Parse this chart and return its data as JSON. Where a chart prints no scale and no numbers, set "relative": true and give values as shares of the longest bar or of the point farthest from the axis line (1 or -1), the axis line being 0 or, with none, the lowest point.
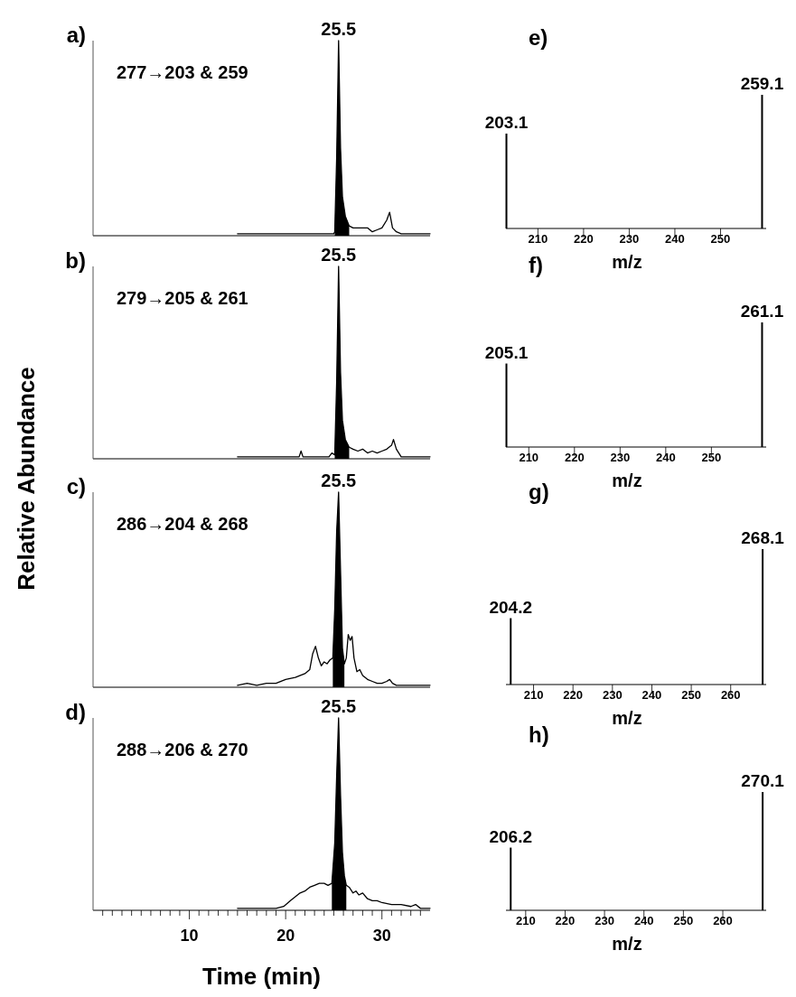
{
  "chart_data": [
    {
      "type": "line",
      "title": "a)",
      "ylabel": "Relative Abundance",
      "relative": true,
      "xlim": [
        0,
        35
      ],
      "tick_labels": false,
      "series": [
        {
          "type": "line",
          "color": "#000000",
          "x": [
            15,
            20,
            25,
            25.1,
            25.3,
            25.5,
            25.7,
            25.9,
            26.2,
            26.6,
            27,
            28.5,
            29,
            29.5,
            30,
            30.5,
            30.8,
            31.1,
            31.5,
            32,
            35
          ],
          "values": [
            0.01,
            0.01,
            0.01,
            0.02,
            0.4,
            1,
            0.45,
            0.2,
            0.1,
            0.05,
            0.04,
            0.04,
            0.02,
            0.03,
            0.04,
            0.08,
            0.12,
            0.04,
            0.02,
            0.01,
            0.01
          ]
        },
        {
          "type": "area",
          "color": "#000000",
          "x": [
            25.1,
            25.3,
            25.5,
            25.7,
            25.9,
            26.2,
            26.6
          ],
          "values": [
            0.02,
            0.4,
            1,
            0.45,
            0.2,
            0.1,
            0.05
          ]
        }
      ],
      "annotations": [
        "277→203 & 259",
        {
          "text": "25.5",
          "x": 25.5,
          "y": 1
        }
      ]
    },
    {
      "type": "line",
      "title": "b)",
      "relative": true,
      "xlim": [
        0,
        35
      ],
      "tick_labels": false,
      "series": [
        {
          "type": "line",
          "color": "#000000",
          "x": [
            15,
            21.4,
            21.6,
            21.8,
            24.5,
            24.8,
            25.1,
            25.3,
            25.5,
            25.7,
            25.9,
            26.2,
            26.6,
            27,
            27.5,
            28,
            28.5,
            29,
            29.5,
            30,
            30.5,
            31,
            31.2,
            31.5,
            32,
            35
          ],
          "values": [
            0.01,
            0.01,
            0.04,
            0.01,
            0.01,
            0.03,
            0.02,
            0.4,
            1,
            0.45,
            0.2,
            0.1,
            0.06,
            0.05,
            0.04,
            0.05,
            0.03,
            0.04,
            0.03,
            0.04,
            0.05,
            0.07,
            0.1,
            0.05,
            0.01,
            0.01
          ]
        },
        {
          "type": "area",
          "color": "#000000",
          "x": [
            25.1,
            25.3,
            25.5,
            25.7,
            25.9,
            26.2,
            26.6
          ],
          "values": [
            0.02,
            0.4,
            1,
            0.45,
            0.2,
            0.1,
            0.06
          ]
        }
      ],
      "annotations": [
        "279→205 & 261",
        {
          "text": "25.5",
          "x": 25.5,
          "y": 1
        }
      ]
    },
    {
      "type": "line",
      "title": "c)",
      "relative": true,
      "xlim": [
        0,
        35
      ],
      "tick_labels": false,
      "series": [
        {
          "type": "line",
          "color": "#000000",
          "x": [
            15,
            16,
            17,
            18,
            19,
            20,
            21,
            22,
            22.5,
            22.8,
            23.1,
            23.4,
            23.7,
            24,
            24.3,
            24.6,
            24.9,
            25.1,
            25.3,
            25.5,
            25.7,
            25.9,
            26.1,
            26.3,
            26.5,
            26.7,
            26.9,
            27.1,
            27.4,
            27.7,
            28,
            28.5,
            29,
            29.5,
            30,
            30.5,
            30.8,
            31.1,
            31.5,
            32,
            33,
            35
          ],
          "values": [
            0.01,
            0.02,
            0.01,
            0.02,
            0.02,
            0.04,
            0.05,
            0.07,
            0.09,
            0.17,
            0.21,
            0.15,
            0.11,
            0.13,
            0.12,
            0.14,
            0.15,
            0.4,
            0.8,
            1,
            0.6,
            0.2,
            0.12,
            0.15,
            0.27,
            0.24,
            0.26,
            0.15,
            0.08,
            0.09,
            0.06,
            0.04,
            0.03,
            0.02,
            0.02,
            0.03,
            0.04,
            0.02,
            0.01,
            0.01,
            0.01,
            0.01
          ]
        },
        {
          "type": "area",
          "color": "#000000",
          "x": [
            24.9,
            25.1,
            25.3,
            25.5,
            25.7,
            25.9,
            26.1
          ],
          "values": [
            0.15,
            0.4,
            0.8,
            1,
            0.6,
            0.2,
            0.12
          ]
        }
      ],
      "annotations": [
        "286→204 & 268",
        {
          "text": "25.5",
          "x": 25.5,
          "y": 1
        }
      ]
    },
    {
      "type": "line",
      "title": "d)",
      "xlabel": "Time (min)",
      "relative": true,
      "xlim": [
        0,
        35
      ],
      "xticks": [
        {
          "value": 1,
          "label": null
        },
        {
          "value": 2,
          "label": null
        },
        {
          "value": 3,
          "label": null
        },
        {
          "value": 4,
          "label": null
        },
        {
          "value": 5,
          "label": null
        },
        {
          "value": 6,
          "label": null
        },
        {
          "value": 7,
          "label": null
        },
        {
          "value": 8,
          "label": null
        },
        {
          "value": 9,
          "label": null
        },
        10,
        {
          "value": 11,
          "label": null
        },
        {
          "value": 12,
          "label": null
        },
        {
          "value": 13,
          "label": null
        },
        {
          "value": 14,
          "label": null
        },
        {
          "value": 15,
          "label": null
        },
        {
          "value": 16,
          "label": null
        },
        {
          "value": 17,
          "label": null
        },
        {
          "value": 18,
          "label": null
        },
        {
          "value": 19,
          "label": null
        },
        20,
        {
          "value": 21,
          "label": null
        },
        {
          "value": 22,
          "label": null
        },
        {
          "value": 23,
          "label": null
        },
        {
          "value": 24,
          "label": null
        },
        {
          "value": 25,
          "label": null
        },
        {
          "value": 26,
          "label": null
        },
        {
          "value": 27,
          "label": null
        },
        {
          "value": 28,
          "label": null
        },
        {
          "value": 29,
          "label": null
        },
        30,
        {
          "value": 31,
          "label": null
        },
        {
          "value": 32,
          "label": null
        },
        {
          "value": 33,
          "label": null
        },
        {
          "value": 34,
          "label": null
        }
      ],
      "tick_labels": "x",
      "series": [
        {
          "type": "line",
          "color": "#000000",
          "x": [
            15,
            16,
            17,
            18,
            19,
            19.8,
            20.5,
            21,
            21.5,
            22,
            22.5,
            23,
            23.5,
            24,
            24.4,
            24.8,
            25.1,
            25.3,
            25.5,
            25.7,
            25.9,
            26.1,
            26.3,
            26.6,
            27,
            27.3,
            27.6,
            28,
            28.5,
            29,
            29.5,
            30,
            31,
            32,
            33,
            33.5,
            34,
            35
          ],
          "values": [
            0.01,
            0.01,
            0.01,
            0.01,
            0.01,
            0.02,
            0.05,
            0.07,
            0.09,
            0.1,
            0.12,
            0.13,
            0.14,
            0.14,
            0.13,
            0.14,
            0.35,
            0.7,
            1,
            0.6,
            0.3,
            0.18,
            0.13,
            0.12,
            0.09,
            0.1,
            0.08,
            0.09,
            0.06,
            0.05,
            0.05,
            0.04,
            0.03,
            0.03,
            0.02,
            0.03,
            0.01,
            0.01
          ]
        },
        {
          "type": "area",
          "color": "#000000",
          "x": [
            24.8,
            25.1,
            25.3,
            25.5,
            25.7,
            25.9,
            26.1,
            26.3
          ],
          "values": [
            0.14,
            0.35,
            0.7,
            1,
            0.6,
            0.3,
            0.18,
            0.13
          ]
        }
      ],
      "annotations": [
        "288→206 & 270",
        {
          "text": "25.5",
          "x": 25.5,
          "y": 1
        }
      ]
    },
    {
      "type": "bar",
      "title": "e)",
      "xlabel": "m/z",
      "relative": true,
      "xlim": [
        203,
        260
      ],
      "xticks": [
        210,
        220,
        230,
        240,
        250
      ],
      "tick_labels": "x",
      "color": "#000000",
      "x": [
        203.1,
        259.1
      ],
      "values": [
        0.71,
        1
      ],
      "annotations": [
        {
          "text": "203.1",
          "x": 203.1,
          "y": 0.71
        },
        {
          "text": "259.1",
          "x": 259.1,
          "y": 1
        }
      ]
    },
    {
      "type": "bar",
      "title": "f)",
      "xlabel": "m/z",
      "relative": true,
      "xlim": [
        205,
        262
      ],
      "xticks": [
        210,
        220,
        230,
        240,
        250
      ],
      "tick_labels": "x",
      "color": "#000000",
      "x": [
        205.1,
        261.1
      ],
      "values": [
        0.67,
        1
      ],
      "annotations": [
        {
          "text": "205.1",
          "x": 205.1,
          "y": 0.67
        },
        {
          "text": "261.1",
          "x": 261.1,
          "y": 1
        }
      ]
    },
    {
      "type": "bar",
      "title": "g)",
      "xlabel": "m/z",
      "relative": true,
      "xlim": [
        203,
        269
      ],
      "xticks": [
        210,
        220,
        230,
        240,
        250,
        260
      ],
      "tick_labels": "x",
      "color": "#000000",
      "x": [
        204.2,
        268.1
      ],
      "values": [
        0.49,
        1
      ],
      "annotations": [
        {
          "text": "204.2",
          "x": 204.2,
          "y": 0.49
        },
        {
          "text": "268.1",
          "x": 268.1,
          "y": 1
        }
      ]
    },
    {
      "type": "bar",
      "title": "h)",
      "xlabel": "m/z",
      "relative": true,
      "xlim": [
        205,
        271
      ],
      "xticks": [
        210,
        220,
        230,
        240,
        250,
        260
      ],
      "tick_labels": "x",
      "color": "#000000",
      "x": [
        206.2,
        270.1
      ],
      "values": [
        0.53,
        1
      ],
      "annotations": [
        {
          "text": "206.2",
          "x": 206.2,
          "y": 0.53
        },
        {
          "text": "270.1",
          "x": 270.1,
          "y": 1
        }
      ]
    }
  ]
}
